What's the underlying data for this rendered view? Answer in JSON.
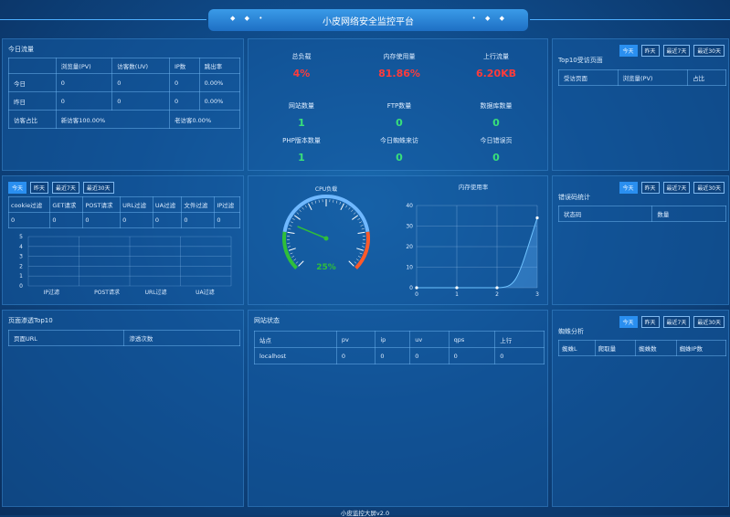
{
  "header": {
    "title": "小皮网络安全监控平台",
    "dots_left": "◆ ◆ •",
    "dots_right": "• ◆ ◆"
  },
  "footer": "小皮监控大屏v2.0",
  "tabs": [
    "今天",
    "昨天",
    "最近7天",
    "最近30天"
  ],
  "today_traffic": {
    "title": "今日流量",
    "columns": [
      "",
      "浏览量(PV)",
      "访客数(UV)",
      "IP数",
      "跳出率"
    ],
    "rows": [
      [
        "今日",
        "0",
        "0",
        "0",
        "0.00%"
      ],
      [
        "昨日",
        "0",
        "0",
        "0",
        "0.00%"
      ]
    ],
    "ratio": {
      "label": "访客占比",
      "new": "新访客100.00%",
      "old": "老访客0.00%"
    }
  },
  "server_stats": [
    {
      "label": "总负载",
      "value": "4%",
      "color": "red"
    },
    {
      "label": "内存使用量",
      "value": "81.86%",
      "color": "red"
    },
    {
      "label": "上行流量",
      "value": "6.20KB",
      "color": "red"
    },
    {
      "label": "网站数量",
      "value": "1",
      "color": "green"
    },
    {
      "label": "FTP数量",
      "value": "0",
      "color": "green"
    },
    {
      "label": "数据库数量",
      "value": "0",
      "color": "green"
    },
    {
      "label": "PHP版本数量",
      "value": "1",
      "color": "green"
    },
    {
      "label": "今日蜘蛛来访",
      "value": "0",
      "color": "green"
    },
    {
      "label": "今日错误页",
      "value": "0",
      "color": "green"
    }
  ],
  "top10_pages": {
    "title": "Top10受访页面",
    "columns": [
      "受访页面",
      "浏览量(PV)",
      "占比"
    ]
  },
  "filter_panel": {
    "columns": [
      "cookie过滤",
      "GET请求",
      "POST请求",
      "URL过滤",
      "UA过滤",
      "文件过滤",
      "IP过滤"
    ],
    "values": [
      "0",
      "0",
      "0",
      "0",
      "0",
      "0",
      "0"
    ]
  },
  "chart_data": [
    {
      "type": "bar",
      "categories": [
        "IP过滤",
        "POST请求",
        "URL过滤",
        "UA过滤"
      ],
      "values": [
        0,
        0,
        0,
        0
      ],
      "ylim": [
        0,
        5
      ],
      "yticks": [
        "0",
        "1",
        "2",
        "3",
        "4",
        "5"
      ],
      "grid": true
    },
    {
      "type": "line",
      "title": "内存使用率",
      "x": [
        0,
        1,
        2,
        3
      ],
      "values": [
        0,
        0,
        0,
        34
      ],
      "xticks": [
        "0",
        "1",
        "2",
        "3"
      ],
      "yticks": [
        "0",
        "10",
        "20",
        "30",
        "40"
      ],
      "ylim": [
        0,
        40
      ],
      "grid": true
    }
  ],
  "gauge": {
    "title": "CPU负载",
    "value": "25%",
    "level": 0.25
  },
  "error_codes": {
    "title": "错误码统计",
    "columns": [
      "状态码",
      "数量"
    ]
  },
  "pen_top10": {
    "title": "页面渗透Top10",
    "columns": [
      "页面URL",
      "渗透次数"
    ]
  },
  "site_status": {
    "title": "网站状态",
    "columns": [
      "站点",
      "pv",
      "ip",
      "uv",
      "qps",
      "上行"
    ],
    "rows": [
      [
        "localhost",
        "0",
        "0",
        "0",
        "0",
        "0"
      ]
    ]
  },
  "spider": {
    "title": "蜘蛛分析",
    "columns": [
      "蜘蛛L",
      "爬取量",
      "蜘蛛数",
      "蜘蛛IP数"
    ]
  }
}
